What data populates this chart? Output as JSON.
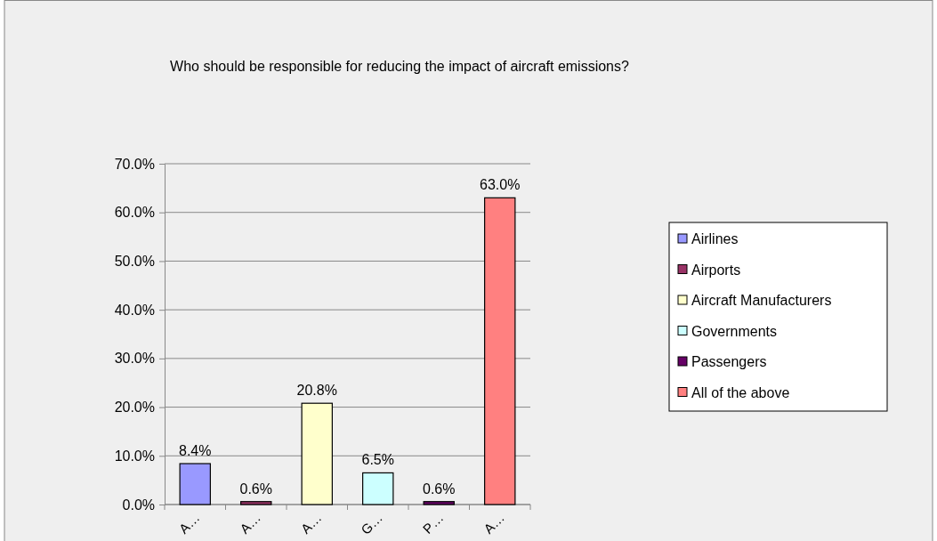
{
  "chart_data": {
    "type": "bar",
    "title": "Who should be responsible for reducing the impact of aircraft emissions?",
    "categories": [
      "A…",
      "A…",
      "A…",
      "G…",
      "P…",
      "A…"
    ],
    "stacked": true,
    "series": [
      {
        "name": "Airlines",
        "color": "#9999ff",
        "values": [
          8.4,
          null,
          null,
          null,
          null,
          null
        ],
        "value_labels": [
          "8.4%",
          null,
          null,
          null,
          null,
          null
        ]
      },
      {
        "name": "Airports",
        "color": "#993366",
        "values": [
          null,
          0.6,
          null,
          null,
          null,
          null
        ],
        "value_labels": [
          null,
          "0.6%",
          null,
          null,
          null,
          null
        ]
      },
      {
        "name": "Aircraft Manufacturers",
        "color": "#ffffcc",
        "values": [
          null,
          null,
          20.8,
          null,
          null,
          null
        ],
        "value_labels": [
          null,
          null,
          "20.8%",
          null,
          null,
          null
        ]
      },
      {
        "name": "Governments",
        "color": "#ccffff",
        "values": [
          null,
          null,
          null,
          6.5,
          null,
          null
        ],
        "value_labels": [
          null,
          null,
          null,
          "6.5%",
          null,
          null
        ]
      },
      {
        "name": "Passengers",
        "color": "#660066",
        "values": [
          null,
          null,
          null,
          null,
          0.6,
          null
        ],
        "value_labels": [
          null,
          null,
          null,
          null,
          "0.6%",
          null
        ]
      },
      {
        "name": "All of the above",
        "color": "#ff8080",
        "values": [
          null,
          null,
          null,
          null,
          null,
          63.0
        ],
        "value_labels": [
          null,
          null,
          null,
          null,
          null,
          "63.0%"
        ]
      }
    ],
    "ylim": [
      0,
      70
    ],
    "yticks": [
      {
        "value": 0,
        "label": "0.0%"
      },
      {
        "value": 10,
        "label": "10.0%"
      },
      {
        "value": 20,
        "label": "20.0%"
      },
      {
        "value": 30,
        "label": "30.0%"
      },
      {
        "value": 40,
        "label": "40.0%"
      },
      {
        "value": 50,
        "label": "50.0%"
      },
      {
        "value": 60,
        "label": "60.0%"
      },
      {
        "value": 70,
        "label": "70.0%"
      }
    ],
    "grid": "y",
    "legend": "right"
  }
}
